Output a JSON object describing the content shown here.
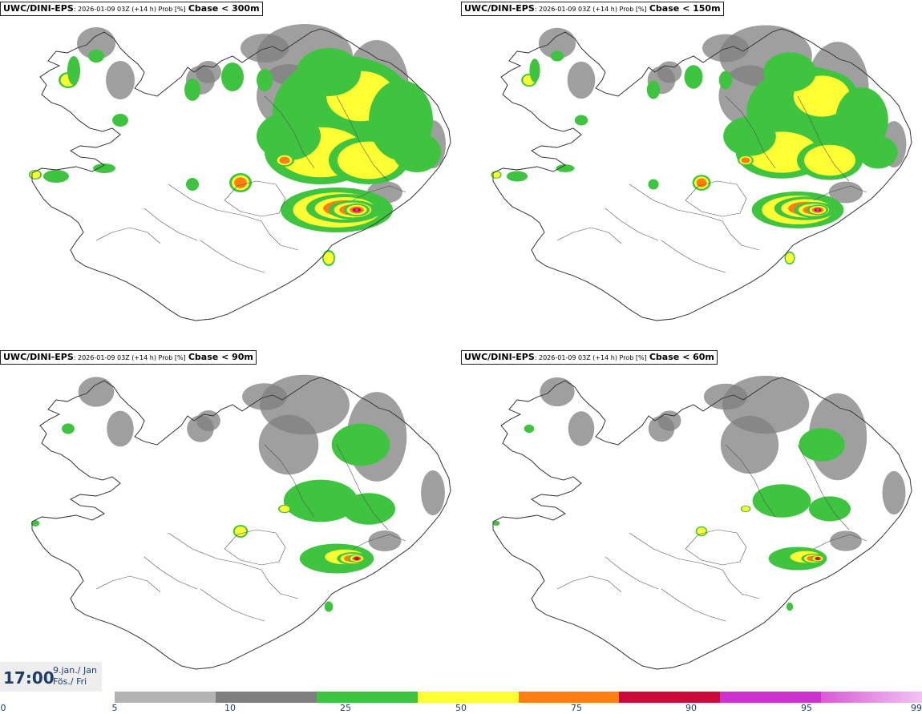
{
  "panels": [
    {
      "model": "UWC/DINI-EPS",
      "meta": ": 2026-01-09 03Z (+14 h) Prob [%]",
      "var": "Cbase < 300m"
    },
    {
      "model": "UWC/DINI-EPS",
      "meta": ": 2026-01-09 03Z (+14 h) Prob [%]",
      "var": "Cbase < 150m"
    },
    {
      "model": "UWC/DINI-EPS",
      "meta": ": 2026-01-09 03Z (+14 h) Prob [%]",
      "var": "Cbase < 90m"
    },
    {
      "model": "UWC/DINI-EPS",
      "meta": ": 2026-01-09 03Z (+14 h) Prob [%]",
      "var": "Cbase < 60m"
    }
  ],
  "time": {
    "clock": "17:00",
    "date_line1": "9.jan./ Jan",
    "date_line2": "Fös./ Fri"
  },
  "legend": {
    "ticks": [
      "0",
      "5",
      "10",
      "25",
      "50",
      "75",
      "90",
      "95",
      "99"
    ],
    "colors": [
      "#b3b3b3",
      "#7f7f7f",
      "#3ec43e",
      "#ffff33",
      "#ff7f10",
      "#cc0a3a",
      "#cc33cc",
      "#f3c3f3"
    ]
  }
}
